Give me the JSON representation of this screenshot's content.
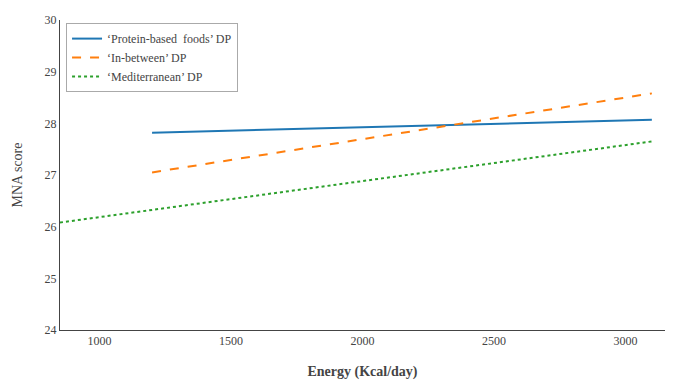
{
  "chart_data": {
    "type": "line",
    "xlabel": "Energy (Kcal/day)",
    "ylabel": "MNA score",
    "xlim": [
      850,
      3150
    ],
    "ylim": [
      24,
      30
    ],
    "xticks": [
      1000,
      1500,
      2000,
      2500,
      3000
    ],
    "yticks": [
      24,
      25,
      26,
      27,
      28,
      29,
      30
    ],
    "series": [
      {
        "name": "‘Protein-based  foods’ DP",
        "x": [
          1200,
          3100
        ],
        "values": [
          27.82,
          28.07
        ],
        "line_style": "solid"
      },
      {
        "name": "‘In-between’ DP",
        "x": [
          1200,
          3100
        ],
        "values": [
          27.05,
          28.58
        ],
        "line_style": "dashed"
      },
      {
        "name": "‘Mediterranean’ DP",
        "x": [
          850,
          3100
        ],
        "values": [
          26.08,
          27.65
        ],
        "line_style": "dotted"
      }
    ],
    "grid": false,
    "legend": "upper left"
  }
}
